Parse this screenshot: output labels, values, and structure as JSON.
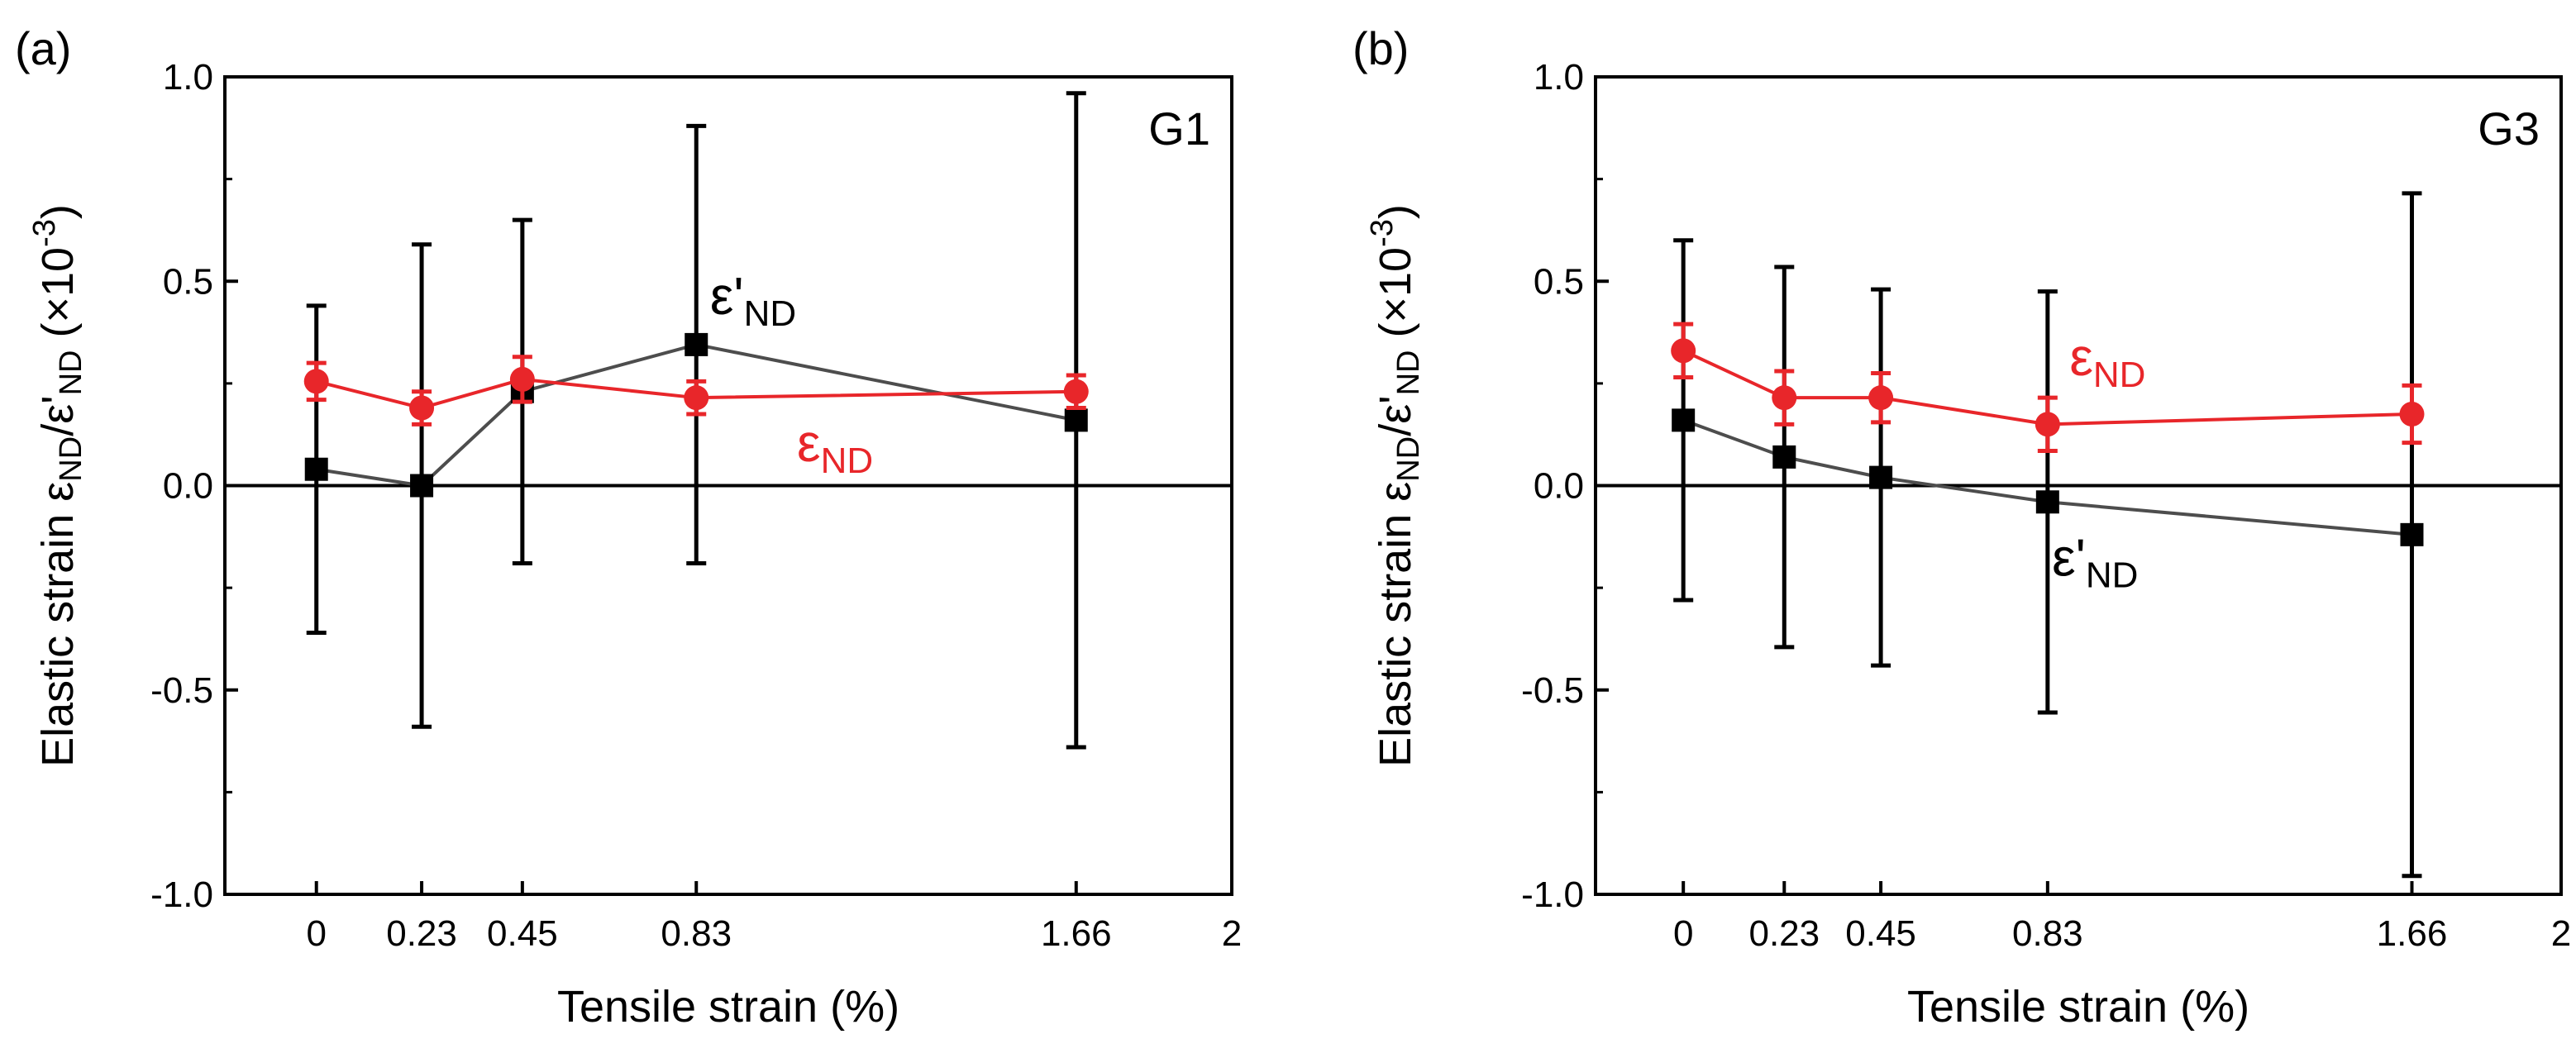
{
  "figure": {
    "x_axis_title": "Tensile strain (%)",
    "y_axis_title": "Elastic strain ε",
    "y_axis_sub": "ND",
    "y_axis_slash": "/ε'",
    "y_axis_unit": " (×10",
    "y_axis_exp": "-3",
    "y_axis_close": ")"
  },
  "chart_data": [
    {
      "type": "line",
      "panel_label": "(a)",
      "grain_label": "G1",
      "xlim": [
        -0.2,
        2
      ],
      "ylim": [
        -1.0,
        1.0
      ],
      "x_tick_values": [
        0,
        0.23,
        0.45,
        0.83,
        1.66,
        2
      ],
      "x_tick_labels": [
        "0",
        "0.23",
        "0.45",
        "0.83",
        "1.66",
        "2"
      ],
      "y_tick_values": [
        -1.0,
        -0.5,
        0.0,
        0.5,
        1.0
      ],
      "y_tick_labels": [
        "-1.0",
        "-0.5",
        "0.0",
        "0.5",
        "1.0"
      ],
      "zero_line": true,
      "series": [
        {
          "name": "ε'ND",
          "label_main": "ε'",
          "label_sub": "ND",
          "label_anchor": [
            0.86,
            0.42
          ],
          "color": "#000000",
          "line_color": "#4d4d4d",
          "marker": "square",
          "x": [
            0,
            0.23,
            0.45,
            0.83,
            1.66
          ],
          "y": [
            0.04,
            0.0,
            0.23,
            0.345,
            0.16
          ],
          "err": [
            0.4,
            0.59,
            0.42,
            0.535,
            0.8
          ]
        },
        {
          "name": "εND",
          "label_main": "ε",
          "label_sub": "ND",
          "label_anchor": [
            1.05,
            0.06
          ],
          "color": "#e8262a",
          "line_color": "#e8262a",
          "marker": "circle",
          "x": [
            0,
            0.23,
            0.45,
            0.83,
            1.66
          ],
          "y": [
            0.255,
            0.19,
            0.26,
            0.215,
            0.23
          ],
          "err": [
            0.045,
            0.04,
            0.055,
            0.04,
            0.04
          ]
        }
      ]
    },
    {
      "type": "line",
      "panel_label": "(b)",
      "grain_label": "G3",
      "xlim": [
        -0.2,
        2
      ],
      "ylim": [
        -1.0,
        1.0
      ],
      "x_tick_values": [
        0,
        0.23,
        0.45,
        0.83,
        1.66,
        2
      ],
      "x_tick_labels": [
        "0",
        "0.23",
        "0.45",
        "0.83",
        "1.66",
        "2"
      ],
      "y_tick_values": [
        -1.0,
        -0.5,
        0.0,
        0.5,
        1.0
      ],
      "y_tick_labels": [
        "-1.0",
        "-0.5",
        "0.0",
        "0.5",
        "1.0"
      ],
      "zero_line": true,
      "series": [
        {
          "name": "ε'ND",
          "label_main": "ε'",
          "label_sub": "ND",
          "label_anchor": [
            0.84,
            -0.22
          ],
          "color": "#000000",
          "line_color": "#4d4d4d",
          "marker": "square",
          "x": [
            0,
            0.23,
            0.45,
            0.83,
            1.66
          ],
          "y": [
            0.16,
            0.07,
            0.02,
            -0.04,
            -0.12
          ],
          "err": [
            0.44,
            0.465,
            0.46,
            0.515,
            0.835
          ]
        },
        {
          "name": "εND",
          "label_main": "ε",
          "label_sub": "ND",
          "label_anchor": [
            0.88,
            0.27
          ],
          "color": "#e8262a",
          "line_color": "#e8262a",
          "marker": "circle",
          "x": [
            0,
            0.23,
            0.45,
            0.83,
            1.66
          ],
          "y": [
            0.33,
            0.215,
            0.215,
            0.15,
            0.175
          ],
          "err": [
            0.065,
            0.065,
            0.06,
            0.065,
            0.07
          ]
        }
      ]
    }
  ]
}
